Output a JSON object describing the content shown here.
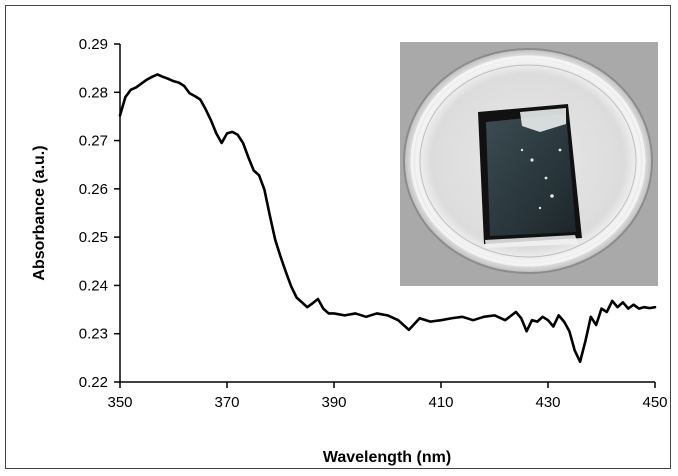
{
  "chart_data": {
    "type": "line",
    "title": "",
    "xlabel": "Wavelength (nm)",
    "ylabel": "Absorbance (a.u.)",
    "xlim": [
      350,
      450
    ],
    "ylim": [
      0.22,
      0.29
    ],
    "x_ticks": [
      "350",
      "370",
      "390",
      "410",
      "430",
      "450"
    ],
    "y_ticks": [
      "0.22",
      "0.23",
      "0.24",
      "0.25",
      "0.26",
      "0.27",
      "0.28",
      "0.29"
    ],
    "grid": false,
    "legend": "none",
    "line_color": "#000000",
    "inset": "photo of a coated glass slide in a petri dish",
    "series": [
      {
        "x": [
          350,
          351,
          352,
          353,
          354,
          355,
          356,
          357,
          358,
          359,
          360,
          361,
          362,
          363,
          364,
          365,
          366,
          367,
          368,
          369,
          370,
          371,
          372,
          373,
          374,
          375,
          376,
          377,
          378,
          379,
          380,
          381,
          382,
          383,
          384,
          385,
          386,
          387,
          388,
          389,
          390,
          392,
          394,
          396,
          398,
          400,
          402,
          404,
          406,
          408,
          410,
          412,
          414,
          416,
          418,
          420,
          422,
          424,
          425,
          426,
          427,
          428,
          429,
          430,
          431,
          432,
          433,
          434,
          435,
          436,
          437,
          438,
          439,
          440,
          441,
          442,
          443,
          444,
          445,
          446,
          447,
          448,
          449,
          450
        ],
        "y": [
          0.2752,
          0.279,
          0.2805,
          0.281,
          0.2818,
          0.2826,
          0.2832,
          0.2837,
          0.2832,
          0.2828,
          0.2823,
          0.282,
          0.2813,
          0.2798,
          0.2792,
          0.2785,
          0.2765,
          0.2742,
          0.2715,
          0.2695,
          0.2715,
          0.2718,
          0.2712,
          0.2695,
          0.2665,
          0.2638,
          0.2628,
          0.2598,
          0.2545,
          0.2495,
          0.246,
          0.2428,
          0.2398,
          0.2375,
          0.2365,
          0.2355,
          0.2363,
          0.2372,
          0.2352,
          0.2342,
          0.2342,
          0.2338,
          0.2342,
          0.2335,
          0.2342,
          0.2338,
          0.2328,
          0.2308,
          0.2332,
          0.2325,
          0.2328,
          0.2332,
          0.2335,
          0.2328,
          0.2335,
          0.2338,
          0.2328,
          0.2345,
          0.2332,
          0.2305,
          0.2328,
          0.2325,
          0.2335,
          0.2328,
          0.2315,
          0.2338,
          0.2325,
          0.2305,
          0.2265,
          0.2242,
          0.2285,
          0.2335,
          0.2318,
          0.2352,
          0.2345,
          0.2368,
          0.2355,
          0.2365,
          0.2352,
          0.236,
          0.2352,
          0.2355,
          0.2353,
          0.2355
        ]
      }
    ]
  }
}
